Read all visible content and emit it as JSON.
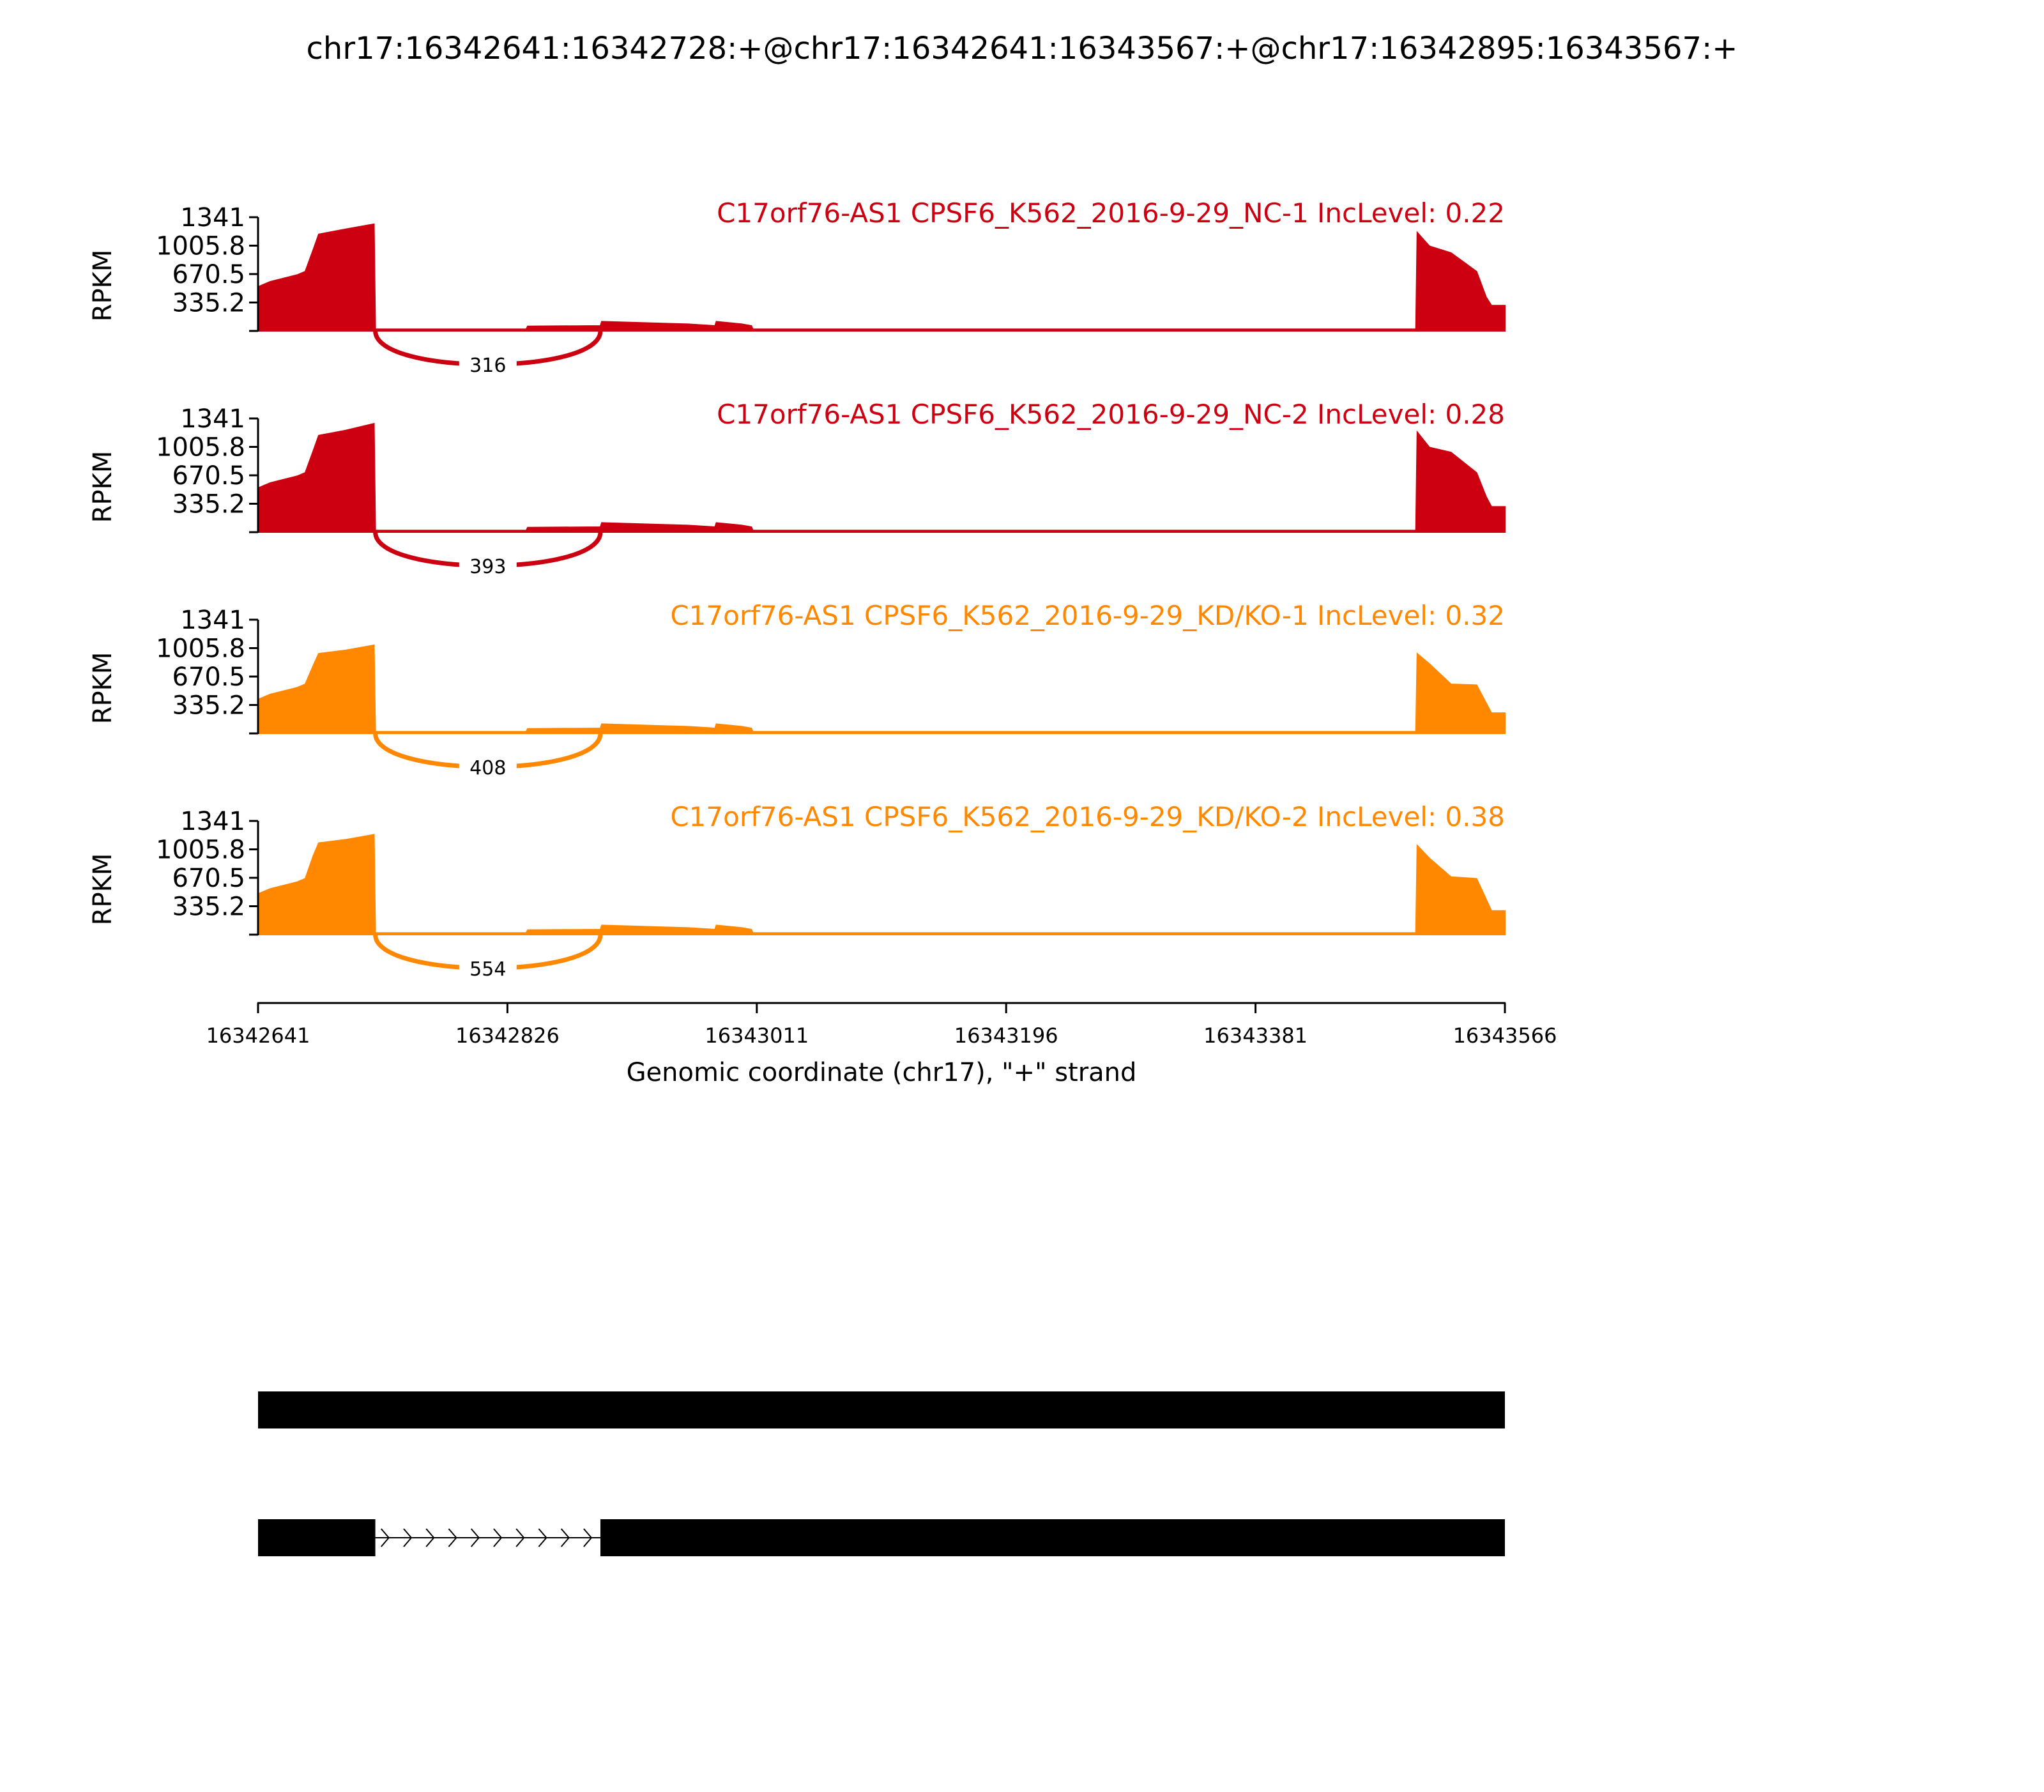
{
  "figure": {
    "title": "chr17:16342641:16342728:+@chr17:16342641:16343567:+@chr17:16342895:16343567:+",
    "xlabel": "Genomic coordinate (chr17), \"+\" strand",
    "ylabel": "RPKM"
  },
  "chart_data": {
    "type": "area",
    "title": "chr17:16342641:16342728:+@chr17:16342641:16343567:+@chr17:16342895:16343567:+",
    "xlabel": "Genomic coordinate (chr17), \"+\" strand",
    "ylabel": "RPKM",
    "xlim": [
      16342641,
      16343566
    ],
    "ylim": [
      0,
      1341
    ],
    "x_ticks": [
      "16342641",
      "16342826",
      "16343011",
      "16343196",
      "16343381",
      "16343566"
    ],
    "y_ticks": [
      "335.2",
      "670.5",
      "1005.8",
      "1341"
    ],
    "series": [
      {
        "name": "C17orf76-AS1 CPSF6_K562_2016-9-29_NC-1 IncLevel: 0.22",
        "color": "#CC0011",
        "junction_reads": "316",
        "coverage": [
          [
            16342641,
            520
          ],
          [
            16342650,
            580
          ],
          [
            16342670,
            660
          ],
          [
            16342676,
            700
          ],
          [
            16342682,
            960
          ],
          [
            16342686,
            1140
          ],
          [
            16342706,
            1200
          ],
          [
            16342727,
            1260
          ],
          [
            16342728,
            20
          ],
          [
            16342840,
            20
          ],
          [
            16342841,
            55
          ],
          [
            16342895,
            60
          ],
          [
            16342896,
            110
          ],
          [
            16342960,
            80
          ],
          [
            16342980,
            60
          ],
          [
            16342981,
            110
          ],
          [
            16343000,
            80
          ],
          [
            16343007,
            60
          ],
          [
            16343008,
            20
          ],
          [
            16343500,
            20
          ],
          [
            16343501,
            1160
          ],
          [
            16343510,
            1000
          ],
          [
            16343526,
            920
          ],
          [
            16343545,
            700
          ],
          [
            16343552,
            400
          ],
          [
            16343556,
            300
          ],
          [
            16343566,
            300
          ]
        ],
        "junction": [
          16342728,
          16342895
        ]
      },
      {
        "name": "C17orf76-AS1 CPSF6_K562_2016-9-29_NC-2 IncLevel: 0.28",
        "color": "#CC0011",
        "junction_reads": "393",
        "coverage": [
          [
            16342641,
            520
          ],
          [
            16342650,
            580
          ],
          [
            16342670,
            660
          ],
          [
            16342676,
            700
          ],
          [
            16342682,
            960
          ],
          [
            16342686,
            1140
          ],
          [
            16342706,
            1200
          ],
          [
            16342727,
            1280
          ],
          [
            16342728,
            20
          ],
          [
            16342840,
            20
          ],
          [
            16342841,
            55
          ],
          [
            16342895,
            60
          ],
          [
            16342896,
            110
          ],
          [
            16342960,
            80
          ],
          [
            16342980,
            60
          ],
          [
            16342981,
            110
          ],
          [
            16343000,
            80
          ],
          [
            16343007,
            60
          ],
          [
            16343008,
            20
          ],
          [
            16343500,
            20
          ],
          [
            16343501,
            1180
          ],
          [
            16343510,
            1000
          ],
          [
            16343526,
            940
          ],
          [
            16343545,
            700
          ],
          [
            16343552,
            420
          ],
          [
            16343556,
            300
          ],
          [
            16343566,
            300
          ]
        ],
        "junction": [
          16342728,
          16342895
        ]
      },
      {
        "name": "C17orf76-AS1 CPSF6_K562_2016-9-29_KD/KO-1 IncLevel: 0.32",
        "color": "#FF8800",
        "junction_reads": "408",
        "coverage": [
          [
            16342641,
            400
          ],
          [
            16342650,
            460
          ],
          [
            16342670,
            540
          ],
          [
            16342676,
            580
          ],
          [
            16342682,
            800
          ],
          [
            16342686,
            940
          ],
          [
            16342706,
            980
          ],
          [
            16342727,
            1040
          ],
          [
            16342728,
            20
          ],
          [
            16342840,
            20
          ],
          [
            16342841,
            55
          ],
          [
            16342895,
            60
          ],
          [
            16342896,
            110
          ],
          [
            16342960,
            80
          ],
          [
            16342980,
            60
          ],
          [
            16342981,
            110
          ],
          [
            16343000,
            80
          ],
          [
            16343007,
            60
          ],
          [
            16343008,
            20
          ],
          [
            16343500,
            20
          ],
          [
            16343501,
            940
          ],
          [
            16343510,
            820
          ],
          [
            16343526,
            580
          ],
          [
            16343545,
            570
          ],
          [
            16343552,
            360
          ],
          [
            16343556,
            240
          ],
          [
            16343566,
            240
          ]
        ],
        "junction": [
          16342728,
          16342895
        ]
      },
      {
        "name": "C17orf76-AS1 CPSF6_K562_2016-9-29_KD/KO-2 IncLevel: 0.38",
        "color": "#FF8800",
        "junction_reads": "554",
        "coverage": [
          [
            16342641,
            480
          ],
          [
            16342650,
            540
          ],
          [
            16342670,
            620
          ],
          [
            16342676,
            660
          ],
          [
            16342682,
            930
          ],
          [
            16342686,
            1080
          ],
          [
            16342706,
            1120
          ],
          [
            16342727,
            1180
          ],
          [
            16342728,
            20
          ],
          [
            16342840,
            20
          ],
          [
            16342841,
            55
          ],
          [
            16342895,
            60
          ],
          [
            16342896,
            110
          ],
          [
            16342960,
            80
          ],
          [
            16342980,
            60
          ],
          [
            16342981,
            110
          ],
          [
            16343000,
            80
          ],
          [
            16343007,
            60
          ],
          [
            16343008,
            20
          ],
          [
            16343500,
            20
          ],
          [
            16343501,
            1050
          ],
          [
            16343510,
            900
          ],
          [
            16343526,
            680
          ],
          [
            16343545,
            660
          ],
          [
            16343552,
            420
          ],
          [
            16343556,
            280
          ],
          [
            16343566,
            280
          ]
        ],
        "junction": [
          16342728,
          16342895
        ]
      }
    ],
    "isoforms": [
      {
        "exons": [
          [
            16342641,
            16343566
          ]
        ]
      },
      {
        "exons": [
          [
            16342641,
            16342728
          ],
          [
            16342895,
            16343566
          ]
        ],
        "intron": [
          16342728,
          16342895
        ]
      }
    ],
    "grid": false
  }
}
